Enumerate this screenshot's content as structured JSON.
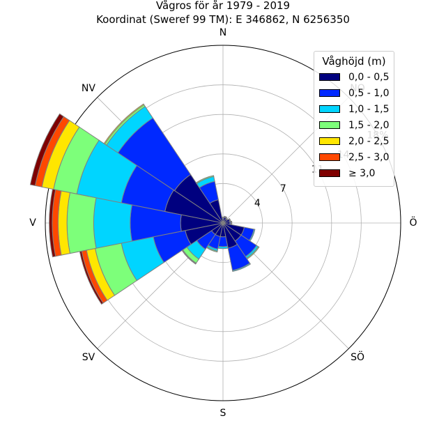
{
  "chart_data": {
    "type": "windrose",
    "title": "Vågros för år 1979 - 2019",
    "subtitle": "Koordinat (Sweref 99 TM): E 346862, N 6256350",
    "directions": [
      "N",
      "NO",
      "Ö",
      "SÖ",
      "S",
      "SV",
      "V",
      "NV"
    ],
    "direction_labels": {
      "N": "N",
      "NO": "NO",
      "Ö": "Ö",
      "SÖ": "SÖ",
      "S": "S",
      "SV": "SV",
      "V": "V",
      "NV": "NV"
    },
    "radial_max": 18,
    "radial_ticks": [
      4,
      7,
      11,
      14,
      18
    ],
    "radial_tick_labels": [
      "4",
      "7",
      "11",
      "14",
      "18%"
    ],
    "radial_unit": "%",
    "sector_width_deg": 11.25,
    "legend": {
      "title": "Våghöjd (m)",
      "placement": "top-right",
      "bins": [
        "0,0 - 0,5",
        "0,5 - 1,0",
        "1,0 - 1,5",
        "1,5 - 2,0",
        "2,0 - 2,5",
        "2,5 - 3,0",
        "≥ 3,0"
      ],
      "colors": [
        "#00007f",
        "#0029ff",
        "#00d5ff",
        "#7dff7a",
        "#ffe600",
        "#ff4800",
        "#7f0000"
      ]
    },
    "sectors": [
      {
        "direction_deg": 0,
        "cumulative": [
          0.4,
          0.5,
          0.55,
          0.6,
          0.6,
          0.6,
          0.6
        ]
      },
      {
        "direction_deg": 22.5,
        "cumulative": [
          0.6,
          0.65,
          0.7,
          0.7,
          0.7,
          0.7,
          0.7
        ]
      },
      {
        "direction_deg": 45,
        "cumulative": [
          0.5,
          0.55,
          0.6,
          0.6,
          0.6,
          0.6,
          0.6
        ]
      },
      {
        "direction_deg": 67.5,
        "cumulative": [
          0.7,
          0.75,
          0.8,
          0.8,
          0.8,
          0.8,
          0.8
        ]
      },
      {
        "direction_deg": 90,
        "cumulative": [
          0.7,
          0.8,
          0.85,
          0.9,
          0.9,
          0.9,
          0.9
        ]
      },
      {
        "direction_deg": 112.5,
        "cumulative": [
          2.2,
          3.2,
          3.3,
          3.3,
          3.3,
          3.3,
          3.3
        ]
      },
      {
        "direction_deg": 135,
        "cumulative": [
          2.2,
          4.1,
          4.3,
          4.4,
          4.4,
          4.4,
          4.4
        ]
      },
      {
        "direction_deg": 157.5,
        "cumulative": [
          2.6,
          4.9,
          5.0,
          5.0,
          5.0,
          5.0,
          5.0
        ]
      },
      {
        "direction_deg": 180,
        "cumulative": [
          1.4,
          2.4,
          2.6,
          2.6,
          2.6,
          2.6,
          2.6
        ]
      },
      {
        "direction_deg": 202.5,
        "cumulative": [
          1.4,
          2.7,
          2.9,
          3.0,
          3.0,
          3.0,
          3.0
        ]
      },
      {
        "direction_deg": 225,
        "cumulative": [
          1.4,
          3.2,
          4.4,
          4.9,
          4.95,
          5.0,
          5.0
        ]
      },
      {
        "direction_deg": 247.5,
        "cumulative": [
          3.9,
          7.2,
          10.5,
          13.2,
          14.1,
          14.6,
          14.8
        ]
      },
      {
        "direction_deg": 270,
        "cumulative": [
          4.3,
          9.4,
          13.1,
          15.8,
          16.7,
          17.3,
          17.6
        ]
      },
      {
        "direction_deg": 292.5,
        "cumulative": [
          6.0,
          10.5,
          15.1,
          17.5,
          18.7,
          19.4,
          19.9
        ]
      },
      {
        "direction_deg": 315,
        "cumulative": [
          5.9,
          12.8,
          14.2,
          14.4,
          14.5,
          14.5,
          14.5
        ]
      },
      {
        "direction_deg": 337.5,
        "cumulative": [
          2.4,
          4.3,
          4.8,
          4.9,
          4.9,
          4.9,
          4.9
        ]
      }
    ]
  }
}
